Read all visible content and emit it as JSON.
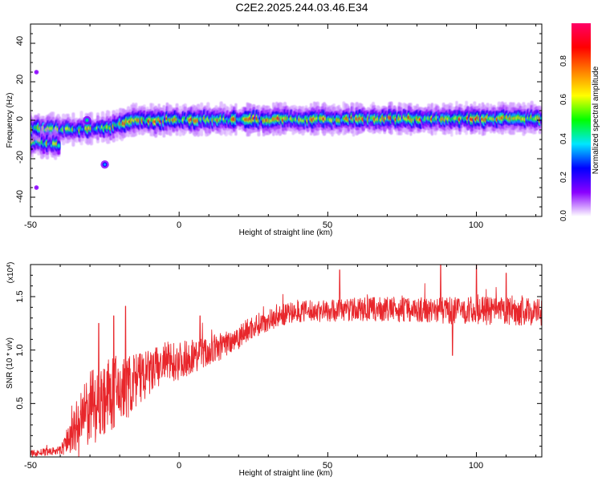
{
  "title": "C2E2.2025.244.03.46.E34",
  "chart_data": [
    {
      "type": "heatmap",
      "name": "spectrogram",
      "xlabel": "Height of straight line (km)",
      "ylabel": "Frequency (Hz)",
      "xlim": [
        -50,
        122
      ],
      "ylim": [
        -50,
        50
      ],
      "xticks": [
        "-50",
        "0",
        "50",
        "100"
      ],
      "yticks": [
        "40",
        "20",
        "0",
        "-20",
        "-40"
      ],
      "colorbar": {
        "label": "Normalized spectral amplitude",
        "range": [
          0,
          1
        ],
        "ticks": [
          "0.0",
          "0.2",
          "0.4",
          "0.6",
          "0.8"
        ],
        "colors": [
          "#ffffff",
          "#8a00ff",
          "#0000ff",
          "#00e6ff",
          "#00ff00",
          "#ffff00",
          "#ff8000",
          "#ff0000",
          "#ff0066"
        ]
      },
      "ridge_segments": [
        {
          "x0": -50,
          "x1": -46,
          "f0": -11,
          "f1": -11
        },
        {
          "x0": -50,
          "x1": -40,
          "f0": -4,
          "f1": -5
        },
        {
          "x0": -46,
          "x1": -40,
          "f0": -12,
          "f1": -13
        },
        {
          "x0": -40,
          "x1": -22,
          "f0": -5,
          "f1": -4
        },
        {
          "x0": -22,
          "x1": -15,
          "f0": -3,
          "f1": 0
        },
        {
          "x0": -15,
          "x1": 122,
          "f0": 0,
          "f1": 1
        }
      ],
      "isolated_blobs": [
        {
          "x": -25,
          "f": -23,
          "amp": 0.35
        },
        {
          "x": -31,
          "f": 0,
          "amp": 0.45
        },
        {
          "x": -48,
          "f": 25,
          "amp": 0.05
        },
        {
          "x": -48,
          "f": -35,
          "amp": 0.05
        }
      ]
    },
    {
      "type": "line",
      "name": "snr",
      "xlabel": "Height of straight line (km)",
      "ylabel": "SNR (10 * v/v)",
      "exponent_label": "(x10",
      "exponent_power": "4",
      "exponent_close": ")",
      "xlim": [
        -50,
        122
      ],
      "ylim": [
        0,
        1.8
      ],
      "xticks": [
        "-50",
        "0",
        "50",
        "100"
      ],
      "yticks": [
        "1.5",
        "1.0",
        "0.5"
      ],
      "color": "#e8262b",
      "envelope": {
        "x": [
          -50,
          -40,
          -35,
          -30,
          -25,
          -20,
          -15,
          -10,
          -5,
          0,
          5,
          10,
          15,
          20,
          25,
          30,
          35,
          40,
          50,
          60,
          70,
          80,
          90,
          100,
          110,
          122
        ],
        "y": [
          0.03,
          0.06,
          0.25,
          0.45,
          0.55,
          0.62,
          0.7,
          0.78,
          0.88,
          0.9,
          0.95,
          0.98,
          1.05,
          1.13,
          1.22,
          1.28,
          1.33,
          1.36,
          1.37,
          1.38,
          1.38,
          1.38,
          1.37,
          1.37,
          1.36,
          1.36
        ]
      },
      "noise": {
        "x": [
          -50,
          -40,
          -35,
          -30,
          -20,
          -10,
          0,
          10,
          20,
          30,
          40,
          60,
          80,
          100,
          122
        ],
        "amp": [
          0.03,
          0.04,
          0.25,
          0.35,
          0.35,
          0.22,
          0.18,
          0.14,
          0.12,
          0.1,
          0.1,
          0.11,
          0.12,
          0.13,
          0.13
        ]
      },
      "peaks": [
        {
          "x": -18,
          "y": 1.41
        },
        {
          "x": -22,
          "y": 1.32
        },
        {
          "x": -27,
          "y": 1.25
        },
        {
          "x": 7,
          "y": 1.32
        },
        {
          "x": 54,
          "y": 1.75
        },
        {
          "x": 88,
          "y": 1.8
        },
        {
          "x": 100,
          "y": 1.8
        },
        {
          "x": 110,
          "y": 1.72
        },
        {
          "x": 92,
          "y": 0.95
        }
      ],
      "samples": 1600,
      "seed": 7
    }
  ]
}
